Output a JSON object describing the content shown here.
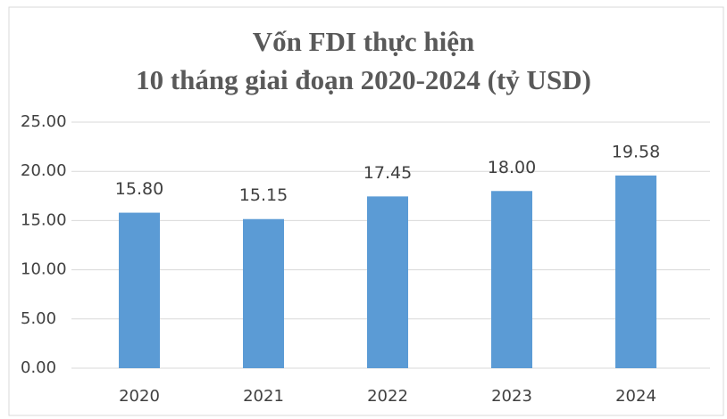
{
  "chart_data": {
    "type": "bar",
    "title": [
      "Vốn FDI thực hiện",
      "10 tháng giai đoạn 2020-2024 (tỷ USD)"
    ],
    "categories": [
      "2020",
      "2021",
      "2022",
      "2023",
      "2024"
    ],
    "values": [
      15.8,
      15.15,
      17.45,
      18,
      19.58
    ],
    "value_labels": [
      "15.80",
      "15.15",
      "17.45",
      "18.00",
      "19.58"
    ],
    "color": "#5b9bd5",
    "ylim": [
      0,
      25
    ],
    "yticks": [
      {
        "value": 0,
        "label": "0.00"
      },
      {
        "value": 5,
        "label": "5.00"
      },
      {
        "value": 10,
        "label": "10.00"
      },
      {
        "value": 15,
        "label": "15.00"
      },
      {
        "value": 20,
        "label": "20.00"
      },
      {
        "value": 25,
        "label": "25.00"
      }
    ],
    "grid": true
  }
}
